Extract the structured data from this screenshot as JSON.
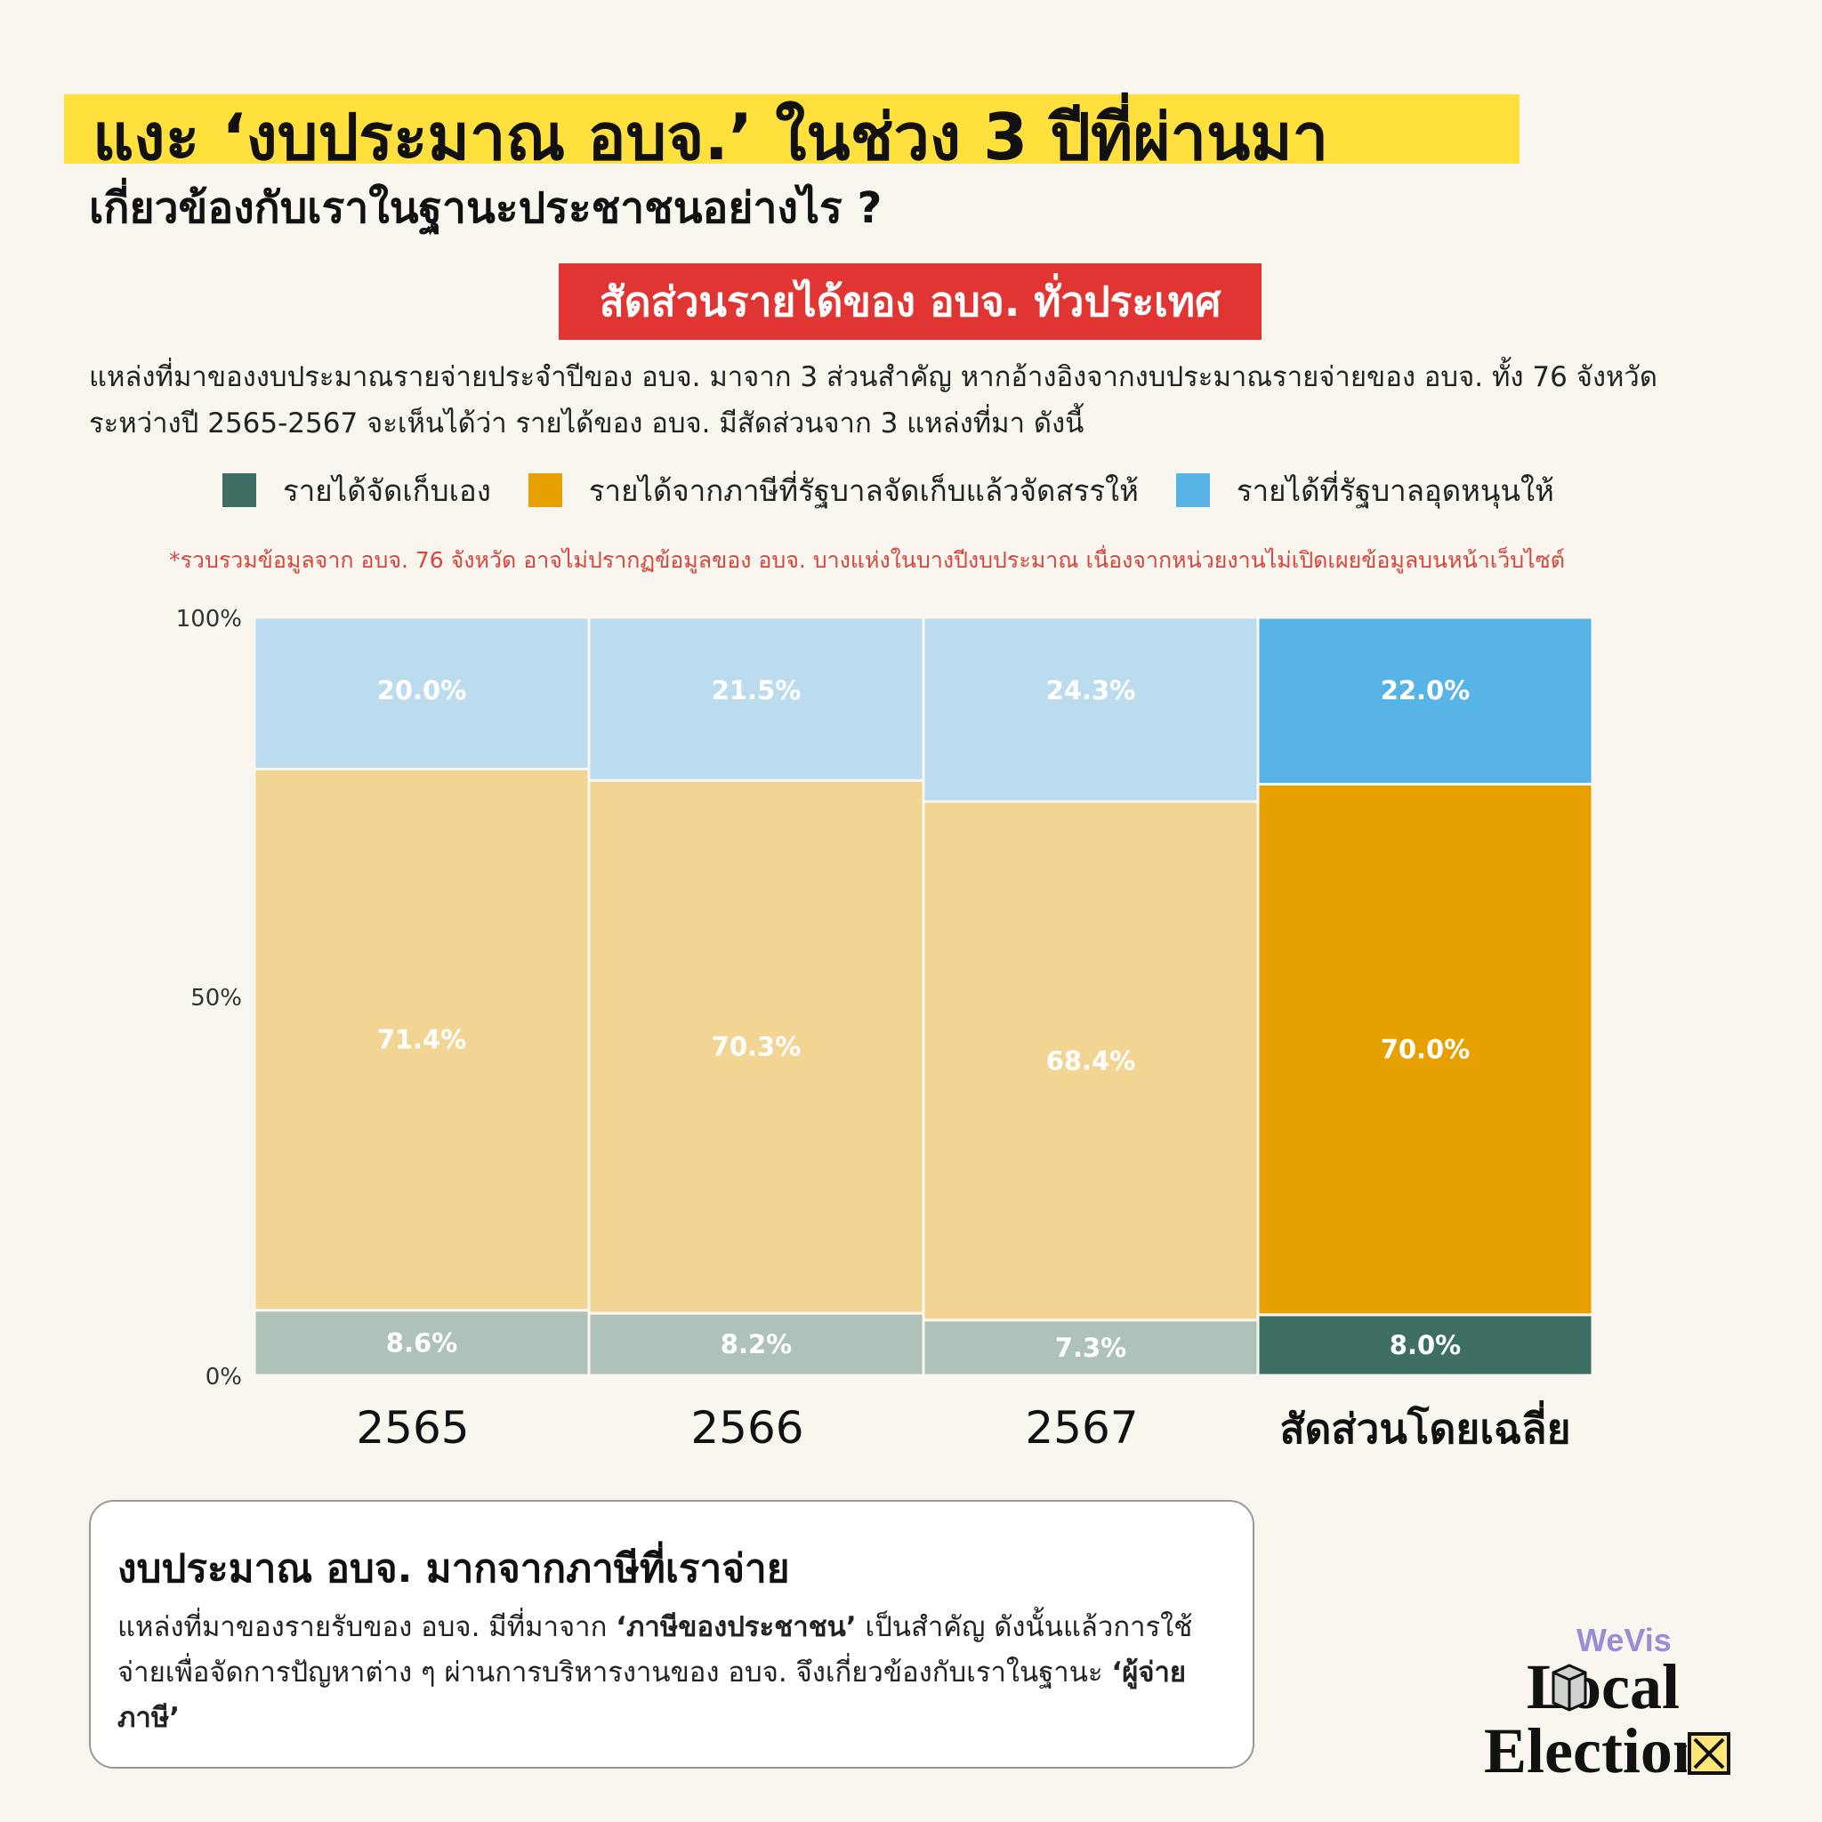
{
  "header": {
    "title": "แงะ ‘งบประมาณ อบจ.’ ในช่วง 3 ปีที่ผ่านมา",
    "subtitle": "เกี่ยวข้องกับเราในฐานะประชาชนอย่างไร ?",
    "badge": "สัดส่วนรายได้ของ อบจ. ทั่วประเทศ",
    "description": "แหล่งที่มาของงบประมาณรายจ่ายประจำปีของ อบจ. มาจาก 3 ส่วนสำคัญ หากอ้างอิงจากงบประมาณรายจ่ายของ อบจ. ทั้ง 76 จังหวัดระหว่างปี 2565-2567 จะเห็นได้ว่า รายได้ของ อบจ. มีสัดส่วนจาก 3 แหล่งที่มา ดังนี้",
    "note": "*รวบรวมข้อมูลจาก อบจ. 76 จังหวัด อาจไม่ปรากฏข้อมูลของ อบจ. บางแห่งในบางปีงบประมาณ เนื่องจากหน่วยงานไม่เปิดเผยข้อมูลบนหน้าเว็บไซต์"
  },
  "chart_data": {
    "type": "bar",
    "stacked": true,
    "categories": [
      "2565",
      "2566",
      "2567",
      "สัดส่วนโดยเฉลี่ย"
    ],
    "series": [
      {
        "name": "รายได้จัดเก็บเอง",
        "values": [
          8.6,
          8.2,
          7.3,
          8.0
        ],
        "labels": [
          "8.6%",
          "8.2%",
          "7.3%",
          "8.0%"
        ],
        "color": "#3e6e64",
        "faded_color": "#aec2ba"
      },
      {
        "name": "รายได้จากภาษีที่รัฐบาลจัดเก็บแล้วจัดสรรให้",
        "values": [
          71.4,
          70.3,
          68.4,
          70.0
        ],
        "labels": [
          "71.4%",
          "70.3%",
          "68.4%",
          "70.0%"
        ],
        "color": "#e6a000",
        "faded_color": "#f2d593"
      },
      {
        "name": "รายได้ที่รัฐบาลอุดหนุนให้",
        "values": [
          20.0,
          21.5,
          24.3,
          22.0
        ],
        "labels": [
          "20.0%",
          "21.5%",
          "24.3%",
          "22.0%"
        ],
        "color": "#58b4e6",
        "faded_color": "#badcee"
      }
    ],
    "highlight_category": "สัดส่วนโดยเฉลี่ย",
    "y_ticks": [
      "0%",
      "50%",
      "100%"
    ],
    "ylim": [
      0,
      100
    ],
    "legend_position": "top"
  },
  "info": {
    "heading": "งบประมาณ อบจ. มากจากภาษีที่เราจ่าย",
    "text_1": "แหล่งที่มาของรายรับของ อบจ. มีที่มาจาก ",
    "text_bold_1": "‘ภาษีของประชาชน’",
    "text_2": " เป็นสำคัญ ดังนั้นแล้วการใช้จ่ายเพื่อจัดการปัญหาต่าง ๆ ผ่านการบริหารงานของ อบจ. จึงเกี่ยวข้องกับเราในฐานะ ",
    "text_bold_2": "‘ผู้จ่ายภาษี’"
  },
  "logo": {
    "brand": "WeVis",
    "line1": "Local",
    "line2": "Election",
    "purple": "#9b8cd6"
  }
}
